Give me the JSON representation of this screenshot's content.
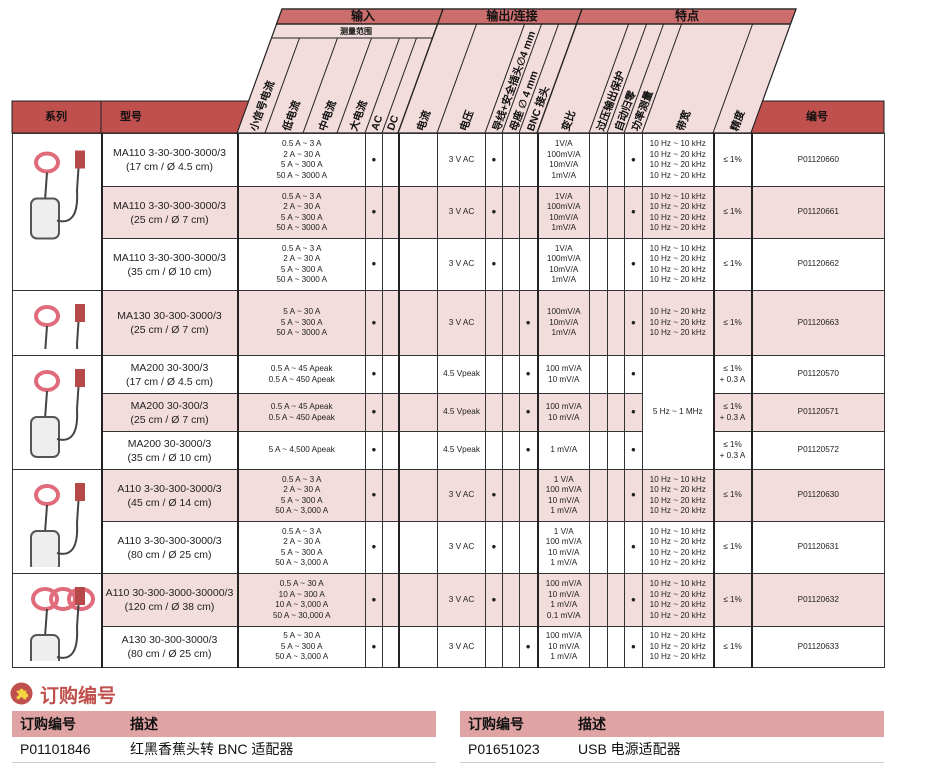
{
  "header": {
    "bands": [
      "输入",
      "输出/连接",
      "特点"
    ],
    "sub_band": "测量范围",
    "series_label": "系列",
    "model_label": "型号",
    "part_label": "编号",
    "columns": [
      "小信号电流",
      "低电流",
      "中电流",
      "大电流",
      "AC",
      "DC",
      "电流",
      "电压",
      "导线+安全插头∅4 mm",
      "母座 ∅ 4 mm",
      "BNC 接头",
      "变比",
      "过压输出保护",
      "自动归零",
      "功率测量",
      "带宽",
      "精度"
    ]
  },
  "colors": {
    "header_red": "#c0504d",
    "band_red": "#cd6e6e",
    "header_pink": "#f2dcdc",
    "row_pink": "#f3dcdc",
    "order_header": "#dfa3a3"
  },
  "series_images": [
    "MA110 clamp probe",
    "MA130 probe set",
    "MA200 probe",
    "A110 probe",
    "A110/A130 large probe"
  ],
  "rows": [
    {
      "model": [
        "MA110 3-30-300-3000/3",
        "(17 cm / Ø 4.5 cm)"
      ],
      "ranges": [
        "0.5 A ~ 3 A",
        "2 A ~ 30 A",
        "5 A ~ 300 A",
        "50 A ~ 3000 A"
      ],
      "ac": "●",
      "dc": "",
      "current": "",
      "voltage": "3 V AC",
      "lead": "●",
      "socket": "",
      "bnc": "",
      "ratio": [
        "1V/A",
        "100mV/A",
        "10mV/A",
        "1mV/A"
      ],
      "ovp": "",
      "autozero": "",
      "power": "●",
      "bandwidth": [
        "10 Hz ~ 10 kHz",
        "10 Hz ~ 20 kHz",
        "10 Hz ~ 20 kHz",
        "10 Hz ~ 20 kHz"
      ],
      "accuracy": [
        "≤ 1%"
      ],
      "part": "P01120660"
    },
    {
      "model": [
        "MA110 3-30-300-3000/3",
        "(25 cm / Ø 7 cm)"
      ],
      "ranges": [
        "0.5 A ~ 3 A",
        "2 A ~ 30 A",
        "5 A ~ 300 A",
        "50 A ~ 3000 A"
      ],
      "ac": "●",
      "dc": "",
      "current": "",
      "voltage": "3 V AC",
      "lead": "●",
      "socket": "",
      "bnc": "",
      "ratio": [
        "1V/A",
        "100mV/A",
        "10mV/A",
        "1mV/A"
      ],
      "ovp": "",
      "autozero": "",
      "power": "●",
      "bandwidth": [
        "10 Hz ~ 10 kHz",
        "10 Hz ~ 20 kHz",
        "10 Hz ~ 20 kHz",
        "10 Hz ~ 20 kHz"
      ],
      "accuracy": [
        "≤ 1%"
      ],
      "part": "P01120661"
    },
    {
      "model": [
        "MA110 3-30-300-3000/3",
        "(35 cm / Ø 10 cm)"
      ],
      "ranges": [
        "0.5 A ~ 3 A",
        "2 A ~ 30 A",
        "5 A ~ 300 A",
        "50 A ~ 3000 A"
      ],
      "ac": "●",
      "dc": "",
      "current": "",
      "voltage": "3 V AC",
      "lead": "●",
      "socket": "",
      "bnc": "",
      "ratio": [
        "1V/A",
        "100mV/A",
        "10mV/A",
        "1mV/A"
      ],
      "ovp": "",
      "autozero": "",
      "power": "●",
      "bandwidth": [
        "10 Hz ~ 10 kHz",
        "10 Hz ~ 20 kHz",
        "10 Hz ~ 20 kHz",
        "10 Hz ~ 20 kHz"
      ],
      "accuracy": [
        "≤ 1%"
      ],
      "part": "P01120662"
    },
    {
      "model": [
        "MA130 30-300-3000/3",
        "(25 cm / Ø 7 cm)"
      ],
      "ranges": [
        "5 A ~ 30 A",
        "5 A ~ 300 A",
        "50 A ~ 3000 A"
      ],
      "ac": "●",
      "dc": "",
      "current": "",
      "voltage": "3 V AC",
      "lead": "",
      "socket": "",
      "bnc": "●",
      "ratio": [
        "100mV/A",
        "10mV/A",
        "1mV/A"
      ],
      "ovp": "",
      "autozero": "",
      "power": "●",
      "bandwidth": [
        "10 Hz ~ 20 kHz",
        "10 Hz ~ 20 kHz",
        "10 Hz ~ 20 kHz"
      ],
      "accuracy": [
        "≤ 1%"
      ],
      "part": "P01120663"
    },
    {
      "model": [
        "MA200 30-300/3",
        "(17 cm / Ø 4.5 cm)"
      ],
      "ranges": [
        "0.5 A ~ 45 Apeak",
        "0.5 A ~ 450 Apeak"
      ],
      "ac": "●",
      "dc": "",
      "current": "",
      "voltage": "4.5 Vpeak",
      "lead": "",
      "socket": "",
      "bnc": "●",
      "ratio": [
        "100 mV/A",
        "10 mV/A"
      ],
      "ovp": "",
      "autozero": "",
      "power": "●",
      "bandwidth": [
        "5 Hz ~ 1 MHz"
      ],
      "accuracy": [
        "≤ 1%",
        "+ 0.3 A"
      ],
      "part": "P01120570"
    },
    {
      "model": [
        "MA200 30-300/3",
        "(25 cm / Ø 7 cm)"
      ],
      "ranges": [
        "0.5 A ~ 45 Apeak",
        "0.5 A ~ 450 Apeak"
      ],
      "ac": "●",
      "dc": "",
      "current": "",
      "voltage": "4.5 Vpeak",
      "lead": "",
      "socket": "",
      "bnc": "●",
      "ratio": [
        "100 mV/A",
        "10 mV/A"
      ],
      "ovp": "",
      "autozero": "",
      "power": "●",
      "bandwidth": null,
      "accuracy": [
        "≤ 1%",
        "+ 0.3 A"
      ],
      "part": "P01120571"
    },
    {
      "model": [
        "MA200 30-3000/3",
        "(35 cm / Ø 10 cm)"
      ],
      "ranges": [
        "5 A ~ 4,500 Apeak"
      ],
      "ac": "●",
      "dc": "",
      "current": "",
      "voltage": "4.5 Vpeak",
      "lead": "",
      "socket": "",
      "bnc": "●",
      "ratio": [
        "1 mV/A"
      ],
      "ovp": "",
      "autozero": "",
      "power": "●",
      "bandwidth": null,
      "accuracy": [
        "≤ 1%",
        "+ 0.3 A"
      ],
      "part": "P01120572"
    },
    {
      "model": [
        "A110 3-30-300-3000/3",
        "(45 cm / Ø 14 cm)"
      ],
      "ranges": [
        "0.5 A ~ 3 A",
        "2 A ~ 30 A",
        "5 A ~ 300 A",
        "50 A ~ 3,000 A"
      ],
      "ac": "●",
      "dc": "",
      "current": "",
      "voltage": "3 V AC",
      "lead": "●",
      "socket": "",
      "bnc": "",
      "ratio": [
        "1 V/A",
        "100 mV/A",
        "10 mV/A",
        "1 mV/A"
      ],
      "ovp": "",
      "autozero": "",
      "power": "●",
      "bandwidth": [
        "10 Hz ~ 10 kHz",
        "10 Hz ~ 20 kHz",
        "10 Hz ~ 20 kHz",
        "10 Hz ~ 20 kHz"
      ],
      "accuracy": [
        "≤ 1%"
      ],
      "part": "P01120630"
    },
    {
      "model": [
        "A110 3-30-300-3000/3",
        "(80 cm / Ø 25 cm)"
      ],
      "ranges": [
        "0.5 A ~ 3 A",
        "2 A ~ 30 A",
        "5 A ~ 300 A",
        "50 A ~ 3,000 A"
      ],
      "ac": "●",
      "dc": "",
      "current": "",
      "voltage": "3 V AC",
      "lead": "●",
      "socket": "",
      "bnc": "",
      "ratio": [
        "1 V/A",
        "100 mV/A",
        "10 mV/A",
        "1 mV/A"
      ],
      "ovp": "",
      "autozero": "",
      "power": "●",
      "bandwidth": [
        "10 Hz ~ 10 kHz",
        "10 Hz ~ 20 kHz",
        "10 Hz ~ 20 kHz",
        "10 Hz ~ 20 kHz"
      ],
      "accuracy": [
        "≤ 1%"
      ],
      "part": "P01120631"
    },
    {
      "model": [
        "A110 30-300-3000-30000/3",
        "(120 cm / Ø 38 cm)"
      ],
      "ranges": [
        "0.5 A ~ 30 A",
        "10 A ~ 300 A",
        "10 A ~ 3,000 A",
        "50 A ~ 30,000 A"
      ],
      "ac": "●",
      "dc": "",
      "current": "",
      "voltage": "3 V AC",
      "lead": "●",
      "socket": "",
      "bnc": "",
      "ratio": [
        "100 mV/A",
        "10 mV/A",
        "1 mV/A",
        "0.1 mV/A"
      ],
      "ovp": "",
      "autozero": "",
      "power": "●",
      "bandwidth": [
        "10 Hz ~ 10 kHz",
        "10 Hz ~ 20 kHz",
        "10 Hz ~ 20 kHz",
        "10 Hz ~ 20 kHz"
      ],
      "accuracy": [
        "≤ 1%"
      ],
      "part": "P01120632"
    },
    {
      "model": [
        "A130 30-300-3000/3",
        "(80 cm / Ø 25 cm)"
      ],
      "ranges": [
        "5 A ~ 30 A",
        "5 A ~ 300 A",
        "50 A ~ 3,000 A"
      ],
      "ac": "●",
      "dc": "",
      "current": "",
      "voltage": "3 V AC",
      "lead": "",
      "socket": "",
      "bnc": "●",
      "ratio": [
        "100 mV/A",
        "10 mV/A",
        "1 mV/A"
      ],
      "ovp": "",
      "autozero": "",
      "power": "●",
      "bandwidth": [
        "10 Hz ~ 20 kHz",
        "10 Hz ~ 20 kHz",
        "10 Hz ~ 20 kHz"
      ],
      "accuracy": [
        "≤ 1%"
      ],
      "part": "P01120633"
    }
  ],
  "order": {
    "title": "订购编号",
    "col_part": "订购编号",
    "col_desc": "描述",
    "items": [
      {
        "part": "P01101846",
        "desc": "红黑香蕉头转 BNC 适配器"
      },
      {
        "part": "P01651023",
        "desc": "USB 电源适配器"
      }
    ]
  }
}
